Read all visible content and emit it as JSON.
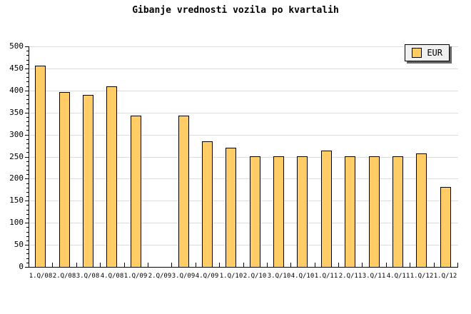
{
  "title": "Gibanje vrednosti vozila po kvartalih",
  "legend": {
    "label": "EUR"
  },
  "colors": {
    "background": "#FFFFFF",
    "bar_fill": "#FFCC66",
    "bar_border": "#000000",
    "gridline": "#DCDCDC",
    "axis": "#000000",
    "text": "#000000",
    "legend_background": "#F0F0F0",
    "legend_shadow": "#666666"
  },
  "chart_data": {
    "type": "bar",
    "title": "Gibanje vrednosti vozila po kvartalih",
    "xlabel": "",
    "ylabel": "",
    "categories": [
      "1.Q/08",
      "2.Q/08",
      "3.Q/08",
      "4.Q/08",
      "1.Q/09",
      "2.Q/09",
      "3.Q/09",
      "4.Q/09",
      "1.Q/10",
      "2.Q/10",
      "3.Q/10",
      "4.Q/10",
      "1.Q/11",
      "2.Q/11",
      "3.Q/11",
      "4.Q/11",
      "1.Q/12",
      "1.Q/12"
    ],
    "series": [
      {
        "name": "EUR",
        "values": [
          456,
          396,
          390,
          410,
          343,
          null,
          343,
          284,
          270,
          250,
          250,
          250,
          264,
          250,
          250,
          250,
          257,
          182
        ]
      }
    ],
    "ylim": [
      0,
      500
    ],
    "ytick_step": 50,
    "y_minor_tick_step": 10,
    "grid": true,
    "legend_position": "top-right",
    "note_missing_bar_category": "2.Q/09"
  }
}
